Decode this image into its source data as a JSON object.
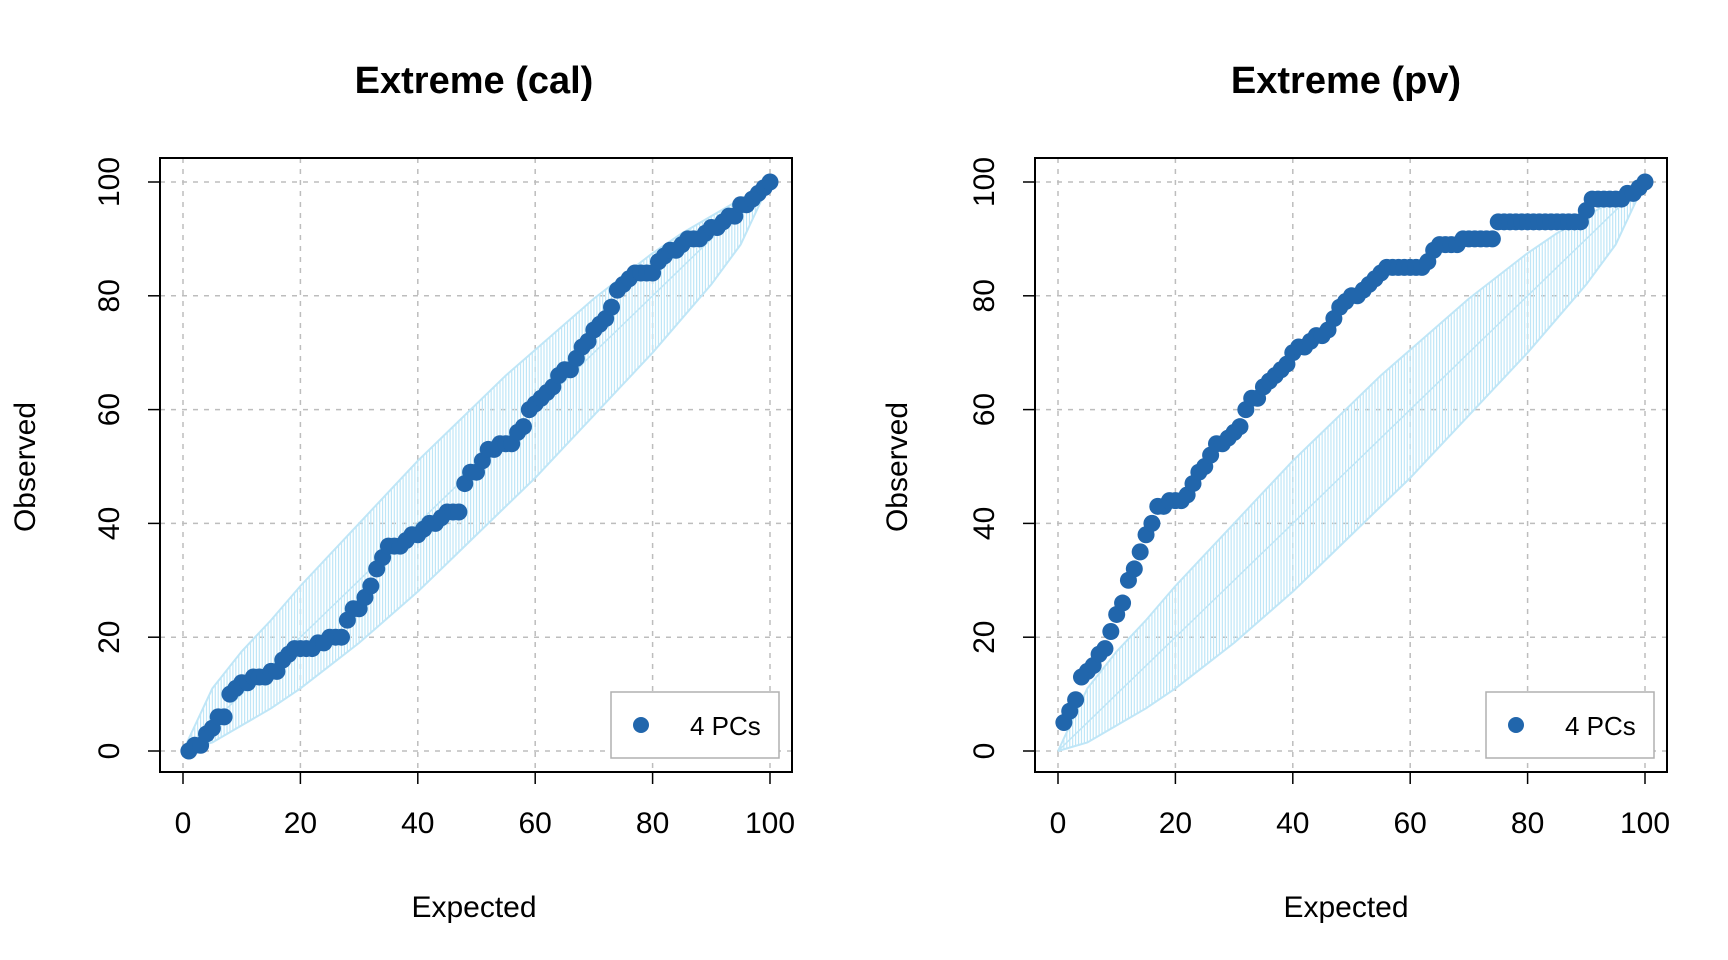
{
  "colors": {
    "points": "#2166ac",
    "band_stroke": "#bfe6f7",
    "frame": "#000000",
    "grid": "#bdbdbd",
    "legend_border": "#b0b0b0"
  },
  "chart_data": [
    {
      "type": "scatter",
      "title": "Extreme (cal)",
      "xlabel": "Expected",
      "ylabel": "Observed",
      "xlim": [
        0,
        100
      ],
      "ylim": [
        0,
        100
      ],
      "xticks": [
        "0",
        "20",
        "40",
        "60",
        "80",
        "100"
      ],
      "yticks": [
        "0",
        "20",
        "40",
        "60",
        "80",
        "100"
      ],
      "grid": true,
      "legend": {
        "position": "bottom-right",
        "entries": [
          "4 PCs"
        ]
      },
      "band": {
        "x": [
          0,
          5,
          10,
          15,
          20,
          25,
          30,
          35,
          40,
          45,
          50,
          55,
          60,
          65,
          70,
          75,
          80,
          85,
          90,
          95,
          100
        ],
        "lower": [
          0,
          1.5,
          4.5,
          7.5,
          11,
          15,
          19,
          23.5,
          28,
          33,
          38,
          43,
          48,
          53.5,
          59,
          64.5,
          70,
          76,
          82,
          89,
          100
        ],
        "upper": [
          0,
          11,
          17.5,
          23,
          29,
          34.5,
          40,
          45.5,
          51,
          56,
          61,
          66,
          70.5,
          75,
          79.5,
          83.5,
          87.5,
          91,
          94,
          97,
          100
        ]
      },
      "series": [
        {
          "name": "4 PCs",
          "x": [
            1,
            2,
            3,
            4,
            5,
            6,
            7,
            8,
            9,
            10,
            11,
            12,
            13,
            14,
            15,
            16,
            17,
            18,
            19,
            20,
            21,
            22,
            23,
            24,
            25,
            26,
            27,
            28,
            29,
            30,
            31,
            32,
            33,
            34,
            35,
            36,
            37,
            38,
            39,
            40,
            41,
            42,
            43,
            44,
            45,
            46,
            47,
            48,
            49,
            50,
            51,
            52,
            53,
            54,
            55,
            56,
            57,
            58,
            59,
            60,
            61,
            62,
            63,
            64,
            65,
            66,
            67,
            68,
            69,
            70,
            71,
            72,
            73,
            74,
            75,
            76,
            77,
            78,
            79,
            80,
            81,
            82,
            83,
            84,
            85,
            86,
            87,
            88,
            89,
            90,
            91,
            92,
            93,
            94,
            95,
            96,
            97,
            98,
            99,
            100
          ],
          "y": [
            0,
            1,
            1,
            3,
            4,
            6,
            6,
            10,
            11,
            12,
            12,
            13,
            13,
            13,
            14,
            14,
            16,
            17,
            18,
            18,
            18,
            18,
            19,
            19,
            20,
            20,
            20,
            23,
            25,
            25,
            27,
            29,
            32,
            34,
            36,
            36,
            36,
            37,
            38,
            38,
            39,
            40,
            40,
            41,
            42,
            42,
            42,
            47,
            49,
            49,
            51,
            53,
            53,
            54,
            54,
            54,
            56,
            57,
            60,
            61,
            62,
            63,
            64,
            66,
            67,
            67,
            69,
            71,
            72,
            74,
            75,
            76,
            78,
            81,
            82,
            83,
            84,
            84,
            84,
            84,
            86,
            87,
            88,
            88,
            89,
            90,
            90,
            90,
            91,
            92,
            92,
            93,
            94,
            94,
            96,
            96,
            97,
            98,
            99,
            100
          ]
        }
      ]
    },
    {
      "type": "scatter",
      "title": "Extreme (pv)",
      "xlabel": "Expected",
      "ylabel": "Observed",
      "xlim": [
        0,
        100
      ],
      "ylim": [
        0,
        100
      ],
      "xticks": [
        "0",
        "20",
        "40",
        "60",
        "80",
        "100"
      ],
      "yticks": [
        "0",
        "20",
        "40",
        "60",
        "80",
        "100"
      ],
      "grid": true,
      "legend": {
        "position": "bottom-right",
        "entries": [
          "4 PCs"
        ]
      },
      "band": {
        "x": [
          0,
          5,
          10,
          15,
          20,
          25,
          30,
          35,
          40,
          45,
          50,
          55,
          60,
          65,
          70,
          75,
          80,
          85,
          90,
          95,
          100
        ],
        "lower": [
          0,
          1.5,
          4.5,
          7.5,
          11,
          15,
          19,
          23.5,
          28,
          33,
          38,
          43,
          48,
          53.5,
          59,
          64.5,
          70,
          76,
          82,
          89,
          100
        ],
        "upper": [
          0,
          11,
          17.5,
          23,
          29,
          34.5,
          40,
          45.5,
          51,
          56,
          61,
          66,
          70.5,
          75,
          79.5,
          83.5,
          87.5,
          91,
          94,
          97,
          100
        ]
      },
      "series": [
        {
          "name": "4 PCs",
          "x": [
            1,
            2,
            3,
            4,
            5,
            6,
            7,
            8,
            9,
            10,
            11,
            12,
            13,
            14,
            15,
            16,
            17,
            18,
            19,
            20,
            21,
            22,
            23,
            24,
            25,
            26,
            27,
            28,
            29,
            30,
            31,
            32,
            33,
            34,
            35,
            36,
            37,
            38,
            39,
            40,
            41,
            42,
            43,
            44,
            45,
            46,
            47,
            48,
            49,
            50,
            51,
            52,
            53,
            54,
            55,
            56,
            57,
            58,
            59,
            60,
            61,
            62,
            63,
            64,
            65,
            66,
            67,
            68,
            69,
            70,
            71,
            72,
            73,
            74,
            75,
            76,
            77,
            78,
            79,
            80,
            81,
            82,
            83,
            84,
            85,
            86,
            87,
            88,
            89,
            90,
            91,
            92,
            93,
            94,
            95,
            96,
            97,
            98,
            99,
            100
          ],
          "y": [
            5,
            7,
            9,
            13,
            14,
            15,
            17,
            18,
            21,
            24,
            26,
            30,
            32,
            35,
            38,
            40,
            43,
            43,
            44,
            44,
            44,
            45,
            47,
            49,
            50,
            52,
            54,
            54,
            55,
            56,
            57,
            60,
            62,
            62,
            64,
            65,
            66,
            67,
            68,
            70,
            71,
            71,
            72,
            73,
            73,
            74,
            76,
            78,
            79,
            80,
            80,
            81,
            82,
            83,
            84,
            85,
            85,
            85,
            85,
            85,
            85,
            85,
            86,
            88,
            89,
            89,
            89,
            89,
            90,
            90,
            90,
            90,
            90,
            90,
            93,
            93,
            93,
            93,
            93,
            93,
            93,
            93,
            93,
            93,
            93,
            93,
            93,
            93,
            93,
            95,
            97,
            97,
            97,
            97,
            97,
            97,
            98,
            98,
            99,
            100
          ]
        }
      ]
    }
  ]
}
